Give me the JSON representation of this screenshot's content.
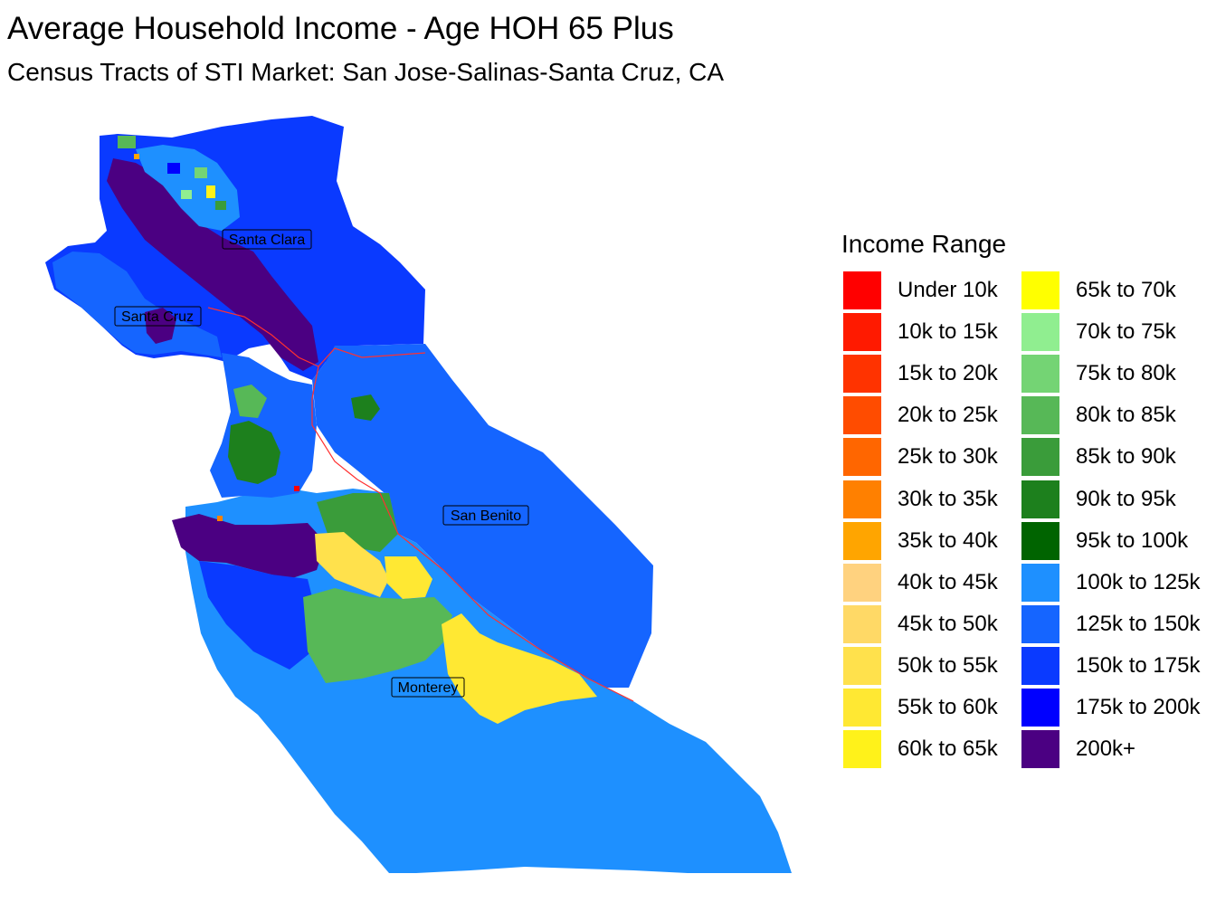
{
  "title": "Average Household Income - Age HOH 65 Plus",
  "subtitle": "Census Tracts of STI Market: San Jose-Salinas-Santa Cruz, CA",
  "counties": [
    {
      "name": "Santa Clara"
    },
    {
      "name": "Santa Cruz"
    },
    {
      "name": "San Benito"
    },
    {
      "name": "Monterey"
    }
  ],
  "legend": {
    "title": "Income Range",
    "items": [
      {
        "label": "Under 10k",
        "color": "#FF0000"
      },
      {
        "label": "10k to 15k",
        "color": "#FF1A00"
      },
      {
        "label": "15k to 20k",
        "color": "#FF3300"
      },
      {
        "label": "20k to 25k",
        "color": "#FF4C00"
      },
      {
        "label": "25k to 30k",
        "color": "#FF6600"
      },
      {
        "label": "30k to 35k",
        "color": "#FF8000"
      },
      {
        "label": "35k to 40k",
        "color": "#FFA500"
      },
      {
        "label": "40k to 45k",
        "color": "#FFD27F"
      },
      {
        "label": "45k to 50k",
        "color": "#FFD966"
      },
      {
        "label": "50k to 55k",
        "color": "#FFE14C"
      },
      {
        "label": "55k to 60k",
        "color": "#FFE833"
      },
      {
        "label": "60k to 65k",
        "color": "#FFF21A"
      },
      {
        "label": "65k to 70k",
        "color": "#FFFF00"
      },
      {
        "label": "70k to 75k",
        "color": "#90EE90"
      },
      {
        "label": "75k to 80k",
        "color": "#74D474"
      },
      {
        "label": "80k to 85k",
        "color": "#57B857"
      },
      {
        "label": "85k to 90k",
        "color": "#3A9C3A"
      },
      {
        "label": "90k to 95k",
        "color": "#1D801D"
      },
      {
        "label": "95k to 100k",
        "color": "#006400"
      },
      {
        "label": "100k to 125k",
        "color": "#1E90FF"
      },
      {
        "label": "125k to 150k",
        "color": "#1565FF"
      },
      {
        "label": "150k to 175k",
        "color": "#0A3AFF"
      },
      {
        "label": "175k to 200k",
        "color": "#0000FF"
      },
      {
        "label": "200k+",
        "color": "#4B0082"
      }
    ]
  }
}
